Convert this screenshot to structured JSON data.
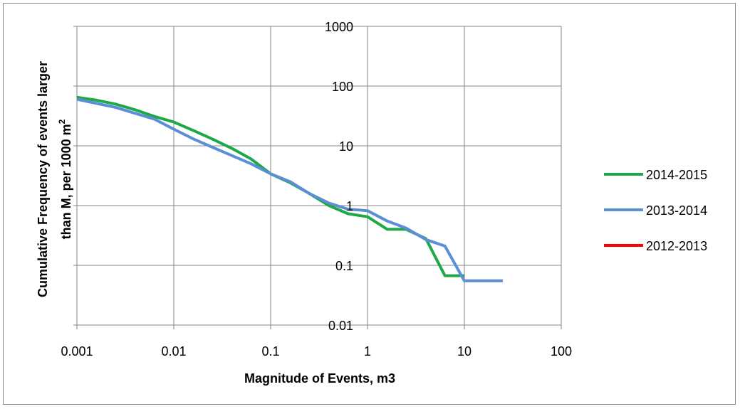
{
  "chart_data": {
    "type": "line",
    "xlabel": "Magnitude of Events, m3",
    "ylabel": "Cumulative Frequency of events larger than M, per 1000 m",
    "ylabel_line1": "Cumulative Frequency of events larger",
    "ylabel_line2_main": "than M, per 1000 m",
    "ylabel_sup": "2",
    "x_scale": "log",
    "y_scale": "log",
    "xlim": [
      0.001,
      100
    ],
    "ylim": [
      0.01,
      1000
    ],
    "x_ticks": [
      0.001,
      0.01,
      0.1,
      1,
      10,
      100
    ],
    "x_tick_labels": [
      "0.001",
      "0.01",
      "0.1",
      "1",
      "10",
      "100"
    ],
    "y_ticks": [
      0.01,
      0.1,
      1,
      10,
      100,
      1000
    ],
    "y_tick_labels": [
      "0.01",
      "0.1",
      "1",
      "10",
      "100",
      "1000"
    ],
    "grid": {
      "x": true,
      "y": true
    },
    "legend_position": "right",
    "series": [
      {
        "name": "2014-2015",
        "color": "#1fa84a",
        "points": [
          [
            0.001,
            65
          ],
          [
            0.0016,
            58
          ],
          [
            0.0025,
            50
          ],
          [
            0.004,
            40
          ],
          [
            0.0063,
            31
          ],
          [
            0.01,
            25
          ],
          [
            0.016,
            18
          ],
          [
            0.025,
            13
          ],
          [
            0.04,
            9
          ],
          [
            0.063,
            6
          ],
          [
            0.1,
            3.4
          ],
          [
            0.16,
            2.4
          ],
          [
            0.25,
            1.6
          ],
          [
            0.4,
            1.0
          ],
          [
            0.63,
            0.73
          ],
          [
            1,
            0.65
          ],
          [
            1.6,
            0.4
          ],
          [
            2.5,
            0.4
          ],
          [
            4,
            0.28
          ],
          [
            6.3,
            0.067
          ],
          [
            10,
            0.067
          ]
        ]
      },
      {
        "name": "2013-2014",
        "color": "#5b8ed6",
        "points": [
          [
            0.001,
            60
          ],
          [
            0.0025,
            44
          ],
          [
            0.0063,
            28
          ],
          [
            0.01,
            19
          ],
          [
            0.016,
            13
          ],
          [
            0.025,
            9.5
          ],
          [
            0.063,
            5
          ],
          [
            0.1,
            3.4
          ],
          [
            0.16,
            2.5
          ],
          [
            0.25,
            1.6
          ],
          [
            0.4,
            1.1
          ],
          [
            0.63,
            0.87
          ],
          [
            1,
            0.82
          ],
          [
            1.6,
            0.55
          ],
          [
            2.5,
            0.42
          ],
          [
            4,
            0.27
          ],
          [
            6.3,
            0.21
          ],
          [
            10,
            0.055
          ],
          [
            16,
            0.055
          ],
          [
            25,
            0.055
          ]
        ]
      },
      {
        "name": "2012-2013",
        "color": "#ff0000",
        "points": []
      }
    ]
  }
}
